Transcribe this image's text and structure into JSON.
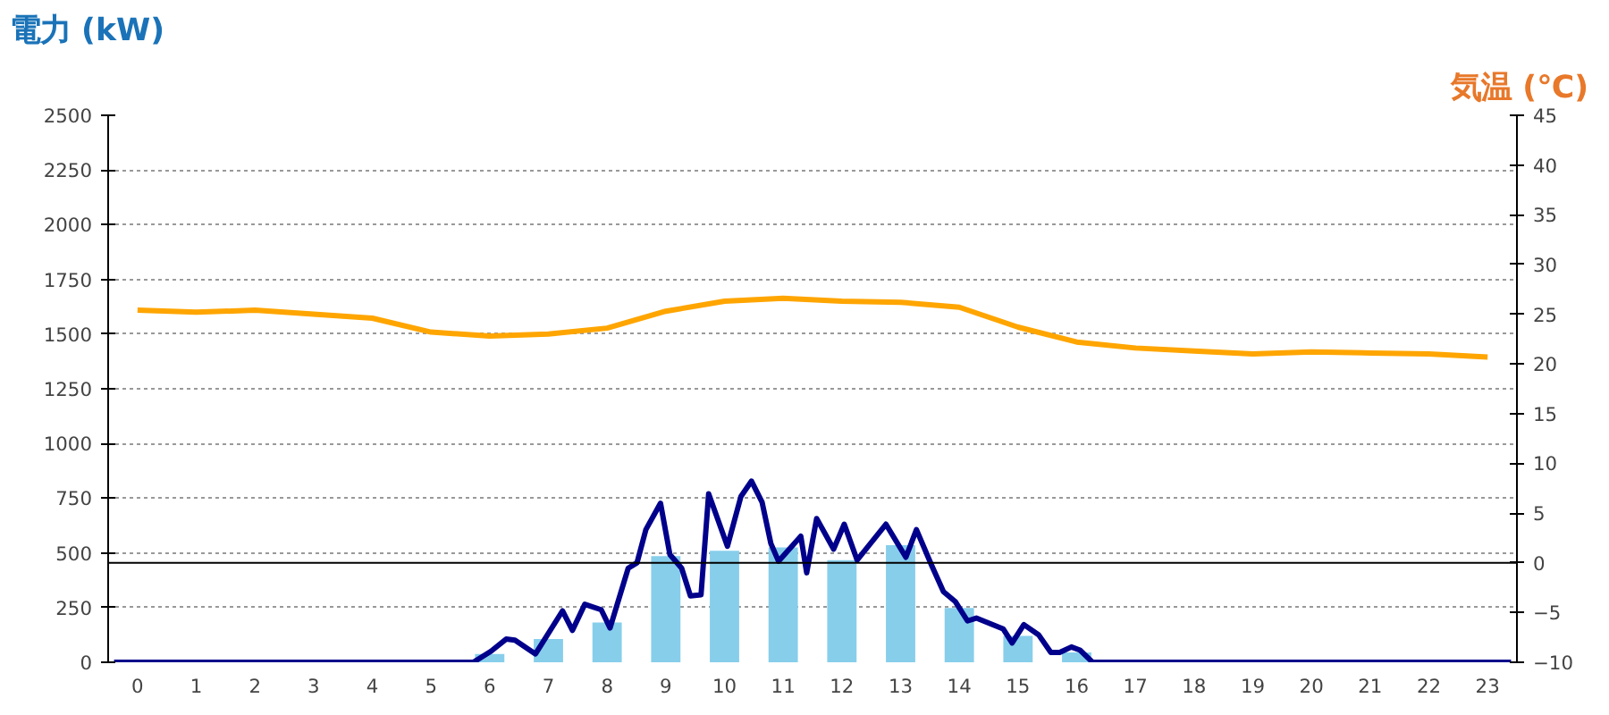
{
  "chart_data": {
    "type": "bar",
    "ylabel": "電力 (kW)",
    "y2label": "気温 (℃)",
    "x": [
      0,
      1,
      2,
      3,
      4,
      5,
      6,
      7,
      8,
      9,
      10,
      11,
      12,
      13,
      14,
      15,
      16,
      17,
      18,
      19,
      20,
      21,
      22,
      23
    ],
    "xlim": [
      -0.5,
      23.5
    ],
    "xticks": [
      0,
      1,
      2,
      3,
      4,
      5,
      6,
      7,
      8,
      9,
      10,
      11,
      12,
      13,
      14,
      15,
      16,
      17,
      18,
      19,
      20,
      21,
      22,
      23
    ],
    "ylim": [
      0,
      2500
    ],
    "yticks": [
      0,
      250,
      500,
      750,
      1000,
      1250,
      1500,
      1750,
      2000,
      2250,
      2500
    ],
    "y2lim": [
      -10,
      45
    ],
    "y2ticks": [
      -10,
      -5,
      0,
      5,
      10,
      15,
      20,
      25,
      30,
      35,
      40,
      45
    ],
    "grid": "y",
    "ref_lines": [
      {
        "axis": "y2",
        "value": 0,
        "color": "#000000"
      }
    ],
    "series": [
      {
        "color": "#87ceeb",
        "values": [
          0,
          0,
          0,
          0,
          0,
          0,
          38,
          106,
          182,
          485,
          510,
          525,
          467,
          535,
          248,
          121,
          45,
          0,
          0,
          0,
          0,
          0,
          0,
          0
        ]
      },
      {
        "type": "line",
        "color": "#00008b",
        "x": [
          -0.4,
          5.72,
          6.02,
          6.28,
          6.43,
          6.78,
          7.24,
          7.41,
          7.62,
          7.9,
          8.05,
          8.36,
          8.51,
          8.66,
          8.91,
          9.07,
          9.27,
          9.42,
          9.6,
          9.73,
          10.05,
          10.28,
          10.46,
          10.64,
          10.79,
          10.92,
          11.3,
          11.4,
          11.57,
          11.86,
          12.04,
          12.26,
          12.75,
          13.09,
          13.27,
          13.53,
          13.73,
          13.93,
          14.14,
          14.29,
          14.75,
          14.9,
          15.1,
          15.35,
          15.56,
          15.71,
          15.91,
          16.06,
          16.27,
          23.4
        ],
        "values": [
          0,
          0,
          50,
          106,
          101,
          38,
          235,
          146,
          265,
          240,
          157,
          430,
          455,
          606,
          727,
          492,
          430,
          303,
          308,
          770,
          530,
          758,
          828,
          732,
          543,
          462,
          576,
          409,
          657,
          517,
          631,
          467,
          631,
          480,
          606,
          442,
          323,
          278,
          189,
          202,
          152,
          88,
          172,
          126,
          45,
          45,
          70,
          55,
          0,
          0
        ]
      },
      {
        "type": "line",
        "color": "#ffa500",
        "axis": "y2",
        "values": [
          25.4,
          25.2,
          25.4,
          25.0,
          24.6,
          23.2,
          22.8,
          23.0,
          23.6,
          25.3,
          26.3,
          26.6,
          26.3,
          26.2,
          25.7,
          23.7,
          22.2,
          21.6,
          21.3,
          21.0,
          21.2,
          21.1,
          21.0,
          20.7
        ]
      }
    ]
  }
}
